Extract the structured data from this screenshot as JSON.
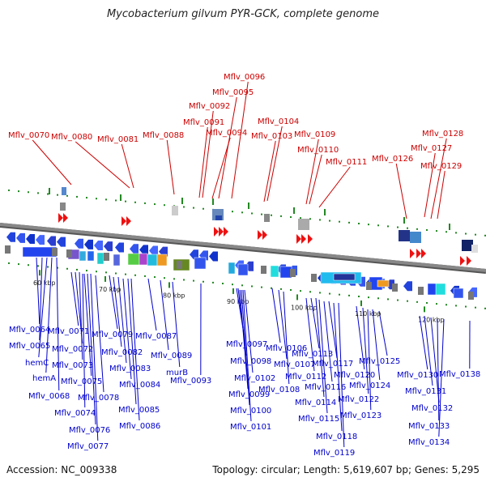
{
  "title": "Mycobacterium gilvum PYR-GCK, complete genome",
  "footer": {
    "accession": "Accession: NC_009338",
    "topology": "Topology: circular; Length: 5,619,607 bp; Genes: 5,295"
  },
  "colors": {
    "top_strand_labels": "#cc0000",
    "bottom_strand_labels": "#0000cc",
    "backbone": "#888888",
    "scale_dots": "#228822"
  },
  "scale_labels": [
    "60 kbp",
    "70 kbp",
    "80 kbp",
    "90 kbp",
    "100 kbp",
    "110 kbp",
    "120 kbp"
  ],
  "top_genes": [
    "Mflv_0070",
    "Mflv_0080",
    "Mflv_0081",
    "Mflv_0088",
    "Mflv_0091",
    "Mflv_0092",
    "Mflv_0094",
    "Mflv_0095",
    "Mflv_0096",
    "Mflv_0103",
    "Mflv_0104",
    "Mflv_0109",
    "Mflv_0110",
    "Mflv_0111",
    "Mflv_0126",
    "Mflv_0127",
    "Mflv_0128",
    "Mflv_0129"
  ],
  "bottom_genes": [
    "Mflv_0064",
    "Mflv_0065",
    "hemC",
    "hemA",
    "Mflv_0068",
    "Mflv_0071",
    "Mflv_0072",
    "Mflv_0073",
    "Mflv_0074",
    "Mflv_0075",
    "Mflv_0076",
    "Mflv_0077",
    "Mflv_0078",
    "Mflv_0079",
    "Mflv_0082",
    "Mflv_0083",
    "Mflv_0084",
    "Mflv_0085",
    "Mflv_0086",
    "Mflv_0087",
    "Mflv_0089",
    "murB",
    "Mflv_0093",
    "Mflv_0097",
    "Mflv_0098",
    "Mflv_0099",
    "Mflv_0100",
    "Mflv_0101",
    "Mflv_0102",
    "Mflv_0106",
    "Mflv_0107",
    "Mflv_0108",
    "Mflv_0112",
    "Mflv_0113",
    "Mflv_0114",
    "Mflv_0115",
    "Mflv_0116",
    "Mflv_0117",
    "Mflv_0118",
    "Mflv_0119",
    "Mflv_0120",
    "Mflv_0122",
    "Mflv_0123",
    "Mflv_0124",
    "Mflv_0125",
    "Mflv_0130",
    "Mflv_0131",
    "Mflv_0132",
    "Mflv_0133",
    "Mflv_0134",
    "Mflv_0138"
  ]
}
